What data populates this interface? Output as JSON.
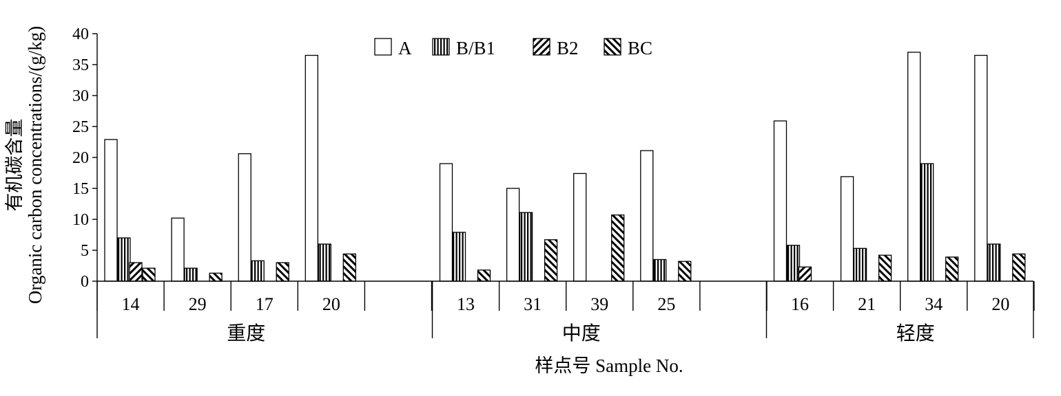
{
  "chart_data": {
    "type": "bar",
    "ylabel_cn": "有机碳含量",
    "ylabel_en": "Organic carbon concentrations/(g/kg)",
    "xlabel": "样点号 Sample No.",
    "ylim": [
      0,
      40
    ],
    "yticks": [
      0,
      5,
      10,
      15,
      20,
      25,
      30,
      35,
      40
    ],
    "legend_position": "top-center",
    "grid": false,
    "series": [
      {
        "name": "A",
        "pattern": "plain"
      },
      {
        "name": "B/B1",
        "pattern": "vertical"
      },
      {
        "name": "B2",
        "pattern": "diagonal-up"
      },
      {
        "name": "BC",
        "pattern": "diagonal-down"
      }
    ],
    "groups": [
      {
        "label": "重度",
        "samples": [
          {
            "label": "14",
            "values": [
              22.9,
              7.0,
              3.0,
              2.1
            ]
          },
          {
            "label": "29",
            "values": [
              10.2,
              2.1,
              null,
              1.3
            ]
          },
          {
            "label": "17",
            "values": [
              20.6,
              3.3,
              null,
              3.0
            ]
          },
          {
            "label": "20",
            "values": [
              36.5,
              6.0,
              null,
              4.4
            ]
          }
        ]
      },
      {
        "label": "中度",
        "samples": [
          {
            "label": "13",
            "values": [
              19.0,
              7.9,
              null,
              1.8
            ]
          },
          {
            "label": "31",
            "values": [
              15.0,
              11.1,
              null,
              6.7
            ]
          },
          {
            "label": "39",
            "values": [
              17.4,
              null,
              null,
              10.7
            ]
          },
          {
            "label": "25",
            "values": [
              21.1,
              3.5,
              null,
              3.2
            ]
          }
        ]
      },
      {
        "label": "轻度",
        "samples": [
          {
            "label": "16",
            "values": [
              25.9,
              5.8,
              2.3,
              null
            ]
          },
          {
            "label": "21",
            "values": [
              16.9,
              5.3,
              null,
              4.2
            ]
          },
          {
            "label": "34",
            "values": [
              37.0,
              19.0,
              null,
              3.9
            ]
          },
          {
            "label": "20",
            "values": [
              36.5,
              6.0,
              null,
              4.4
            ]
          }
        ]
      }
    ]
  }
}
